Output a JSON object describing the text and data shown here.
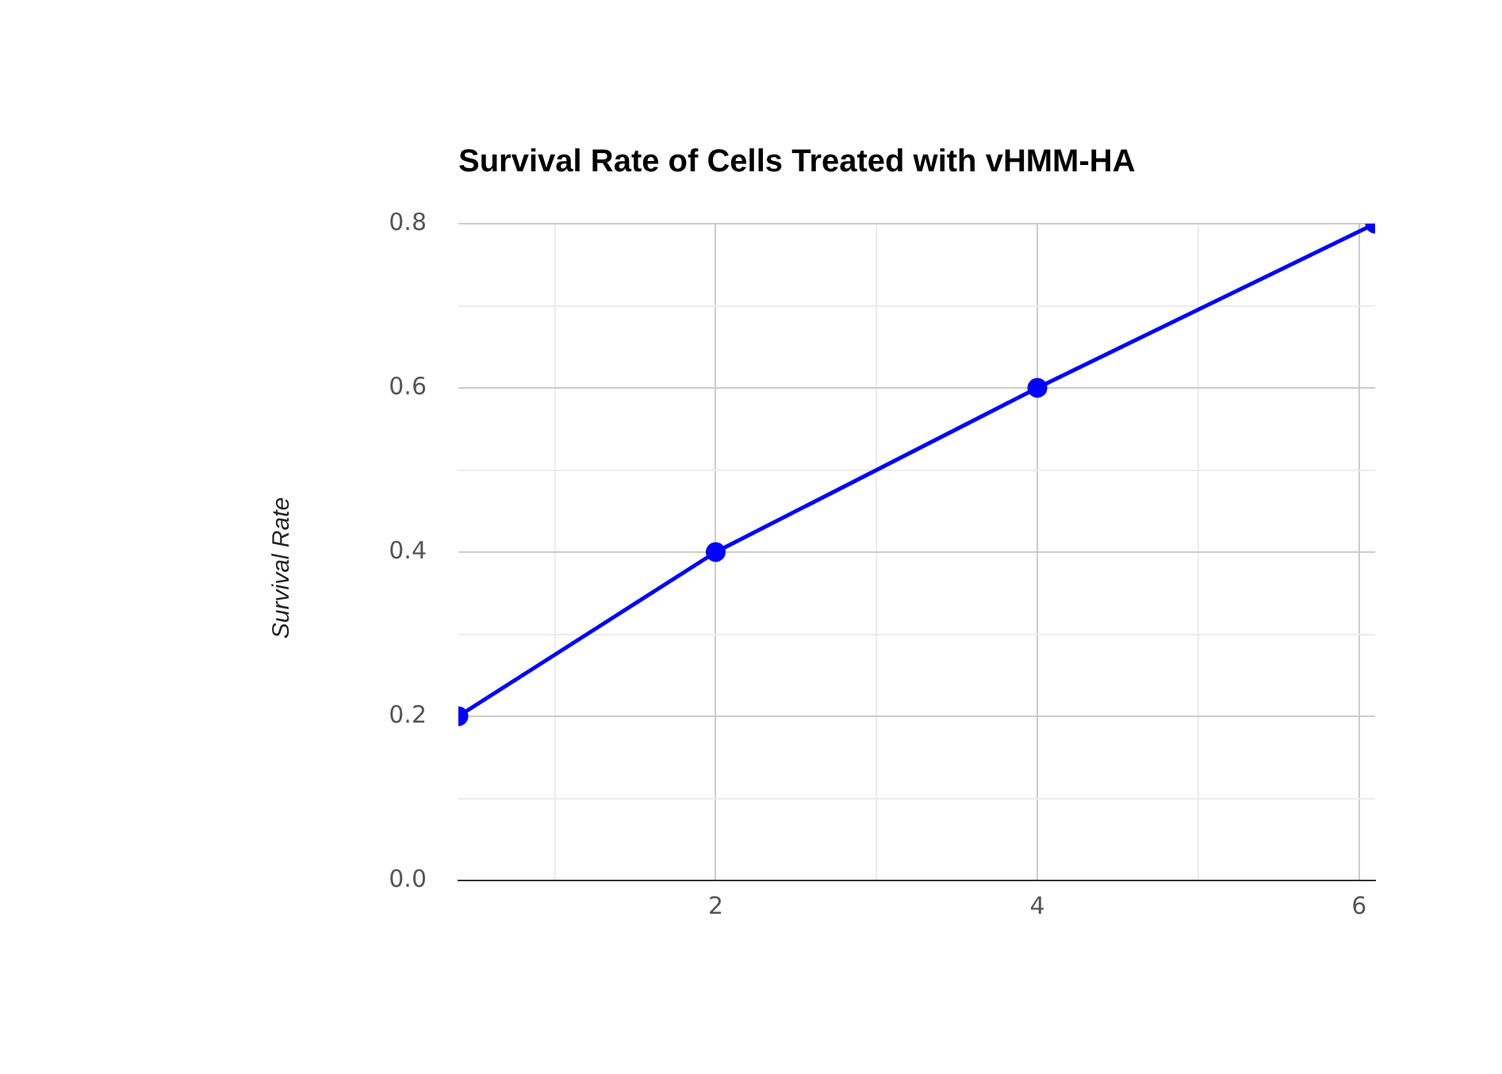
{
  "chart_data": {
    "type": "line",
    "title": "Survival Rate of Cells Treated with vHMM-HA",
    "ylabel": "Survival Rate",
    "x": [
      0.4,
      2,
      4,
      6.1
    ],
    "series": [
      {
        "color": "#0000ff",
        "values": [
          0.2,
          0.4,
          0.6,
          0.8
        ]
      }
    ],
    "xlim": [
      0.4,
      6.1
    ],
    "xticks": [
      {
        "value": 1,
        "label": null
      },
      2,
      {
        "value": 3,
        "label": null
      },
      4,
      {
        "value": 5,
        "label": null
      },
      6
    ],
    "ylim": [
      0,
      0.8
    ],
    "yticks": [
      {
        "value": 0,
        "label": "0.0"
      },
      {
        "value": 0.1,
        "label": null
      },
      0.2,
      {
        "value": 0.3,
        "label": null
      },
      0.4,
      {
        "value": 0.5,
        "label": null
      },
      0.6,
      {
        "value": 0.7,
        "label": null
      },
      0.8
    ],
    "grid": true,
    "legend": false,
    "marker": "circle",
    "line_style": "solid"
  }
}
